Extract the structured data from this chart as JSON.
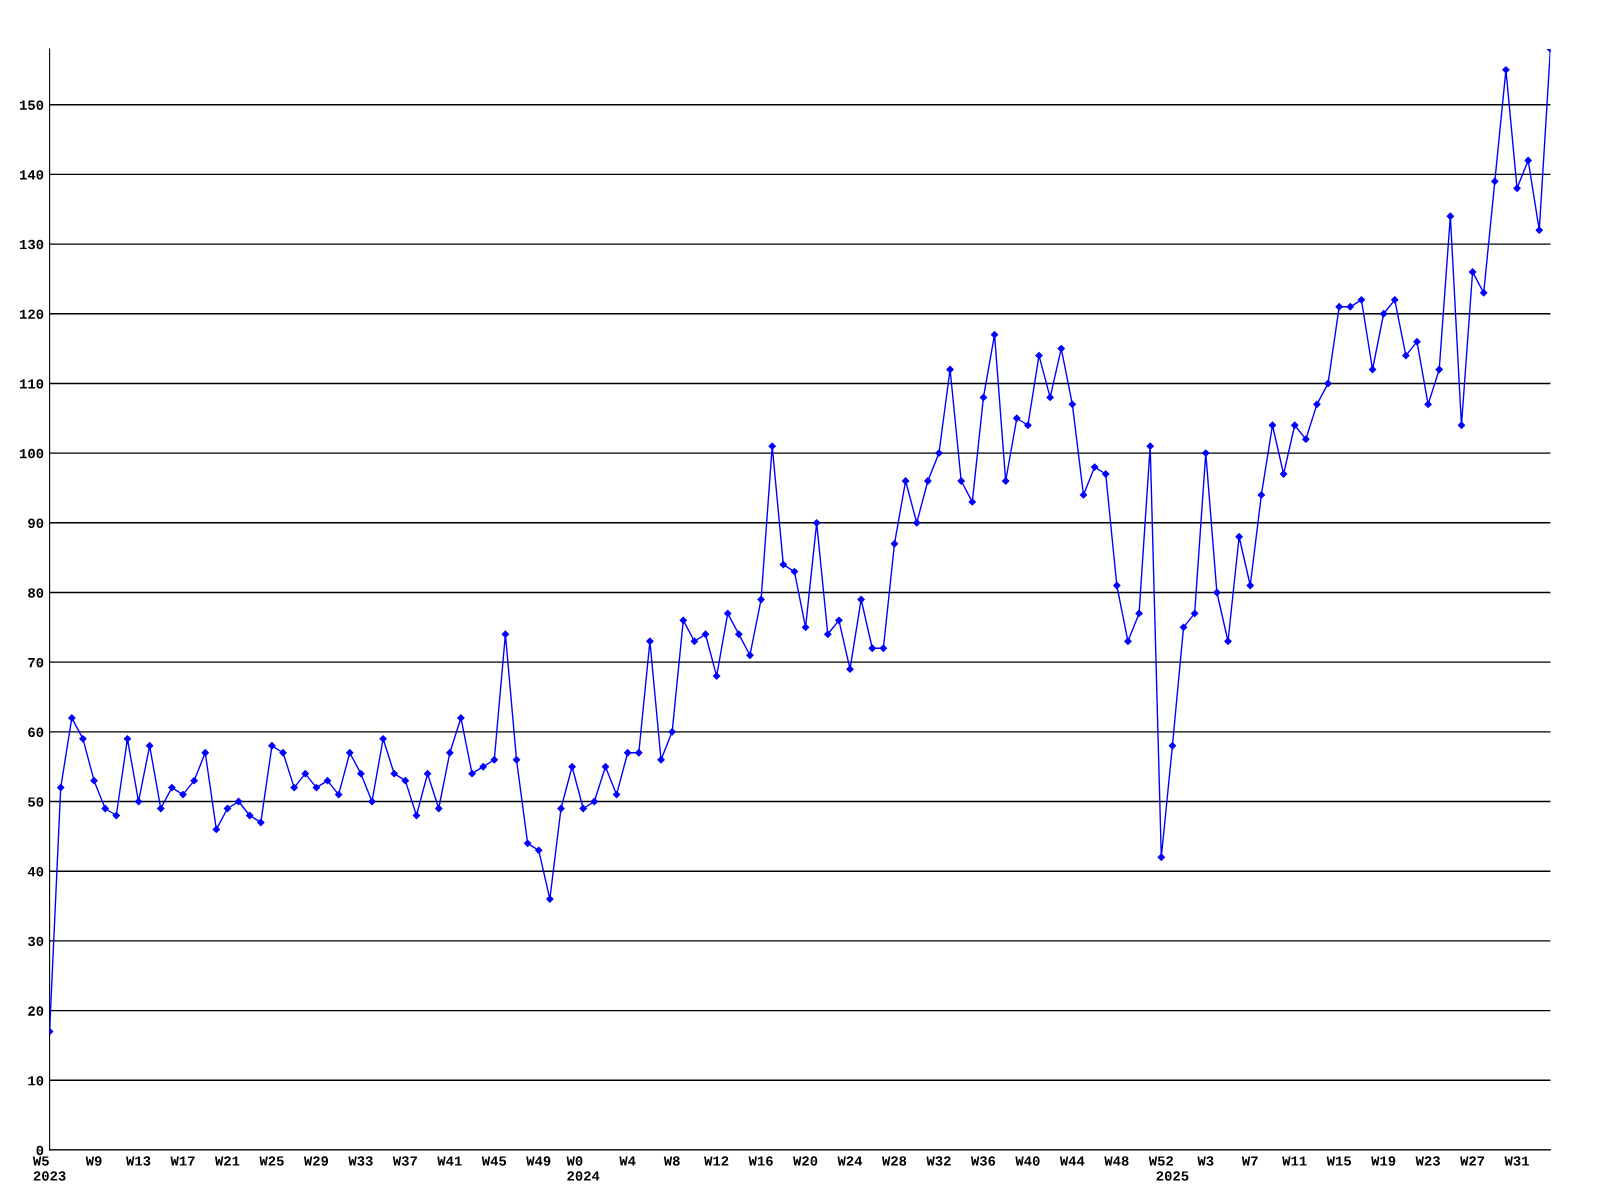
{
  "chart_data": {
    "type": "line",
    "categories": [
      "W5\n2023",
      null,
      null,
      null,
      "W9",
      null,
      null,
      null,
      "W13",
      null,
      null,
      null,
      "W17",
      null,
      null,
      null,
      "W21",
      null,
      null,
      null,
      "W25",
      null,
      null,
      null,
      "W29",
      null,
      null,
      null,
      "W33",
      null,
      null,
      null,
      "W37",
      null,
      null,
      null,
      "W41",
      null,
      null,
      null,
      "W45",
      null,
      null,
      null,
      "W49",
      null,
      null,
      null,
      "W0\n2024",
      null,
      null,
      null,
      "W4",
      null,
      null,
      null,
      "W8",
      null,
      null,
      null,
      "W12",
      null,
      null,
      null,
      "W16",
      null,
      null,
      null,
      "W20",
      null,
      null,
      null,
      "W24",
      null,
      null,
      null,
      "W28",
      null,
      null,
      null,
      "W32",
      null,
      null,
      null,
      "W36",
      null,
      null,
      null,
      "W40",
      null,
      null,
      null,
      "W44",
      null,
      null,
      null,
      "W48",
      null,
      null,
      null,
      "W52",
      "\n2025",
      null,
      null,
      "W3",
      null,
      null,
      null,
      "W7",
      null,
      null,
      null,
      "W11",
      null,
      null,
      null,
      "W15",
      null,
      null,
      null,
      "W19",
      null,
      null,
      null,
      "W23",
      null,
      null,
      null,
      "W27",
      null,
      null,
      null,
      "W31",
      null,
      null,
      null
    ],
    "series": [
      {
        "color": "#0000ff",
        "values": [
          17,
          52,
          62,
          59,
          53,
          49,
          48,
          59,
          50,
          58,
          49,
          52,
          51,
          53,
          57,
          46,
          49,
          50,
          48,
          47,
          58,
          57,
          52,
          54,
          52,
          53,
          51,
          57,
          54,
          50,
          59,
          54,
          53,
          48,
          54,
          49,
          57,
          62,
          54,
          55,
          56,
          74,
          56,
          44,
          43,
          36,
          49,
          55,
          49,
          50,
          55,
          51,
          57,
          57,
          73,
          56,
          60,
          76,
          73,
          74,
          68,
          77,
          74,
          71,
          79,
          101,
          84,
          83,
          75,
          90,
          74,
          76,
          69,
          79,
          72,
          72,
          87,
          96,
          90,
          96,
          100,
          112,
          96,
          93,
          108,
          117,
          96,
          105,
          104,
          114,
          108,
          115,
          107,
          94,
          98,
          97,
          81,
          73,
          77,
          101,
          42,
          58,
          75,
          77,
          100,
          80,
          73,
          88,
          81,
          94,
          104,
          97,
          104,
          102,
          107,
          110,
          121,
          121,
          122,
          112,
          120,
          122,
          114,
          116,
          107,
          112,
          134,
          104,
          126,
          123,
          139,
          155,
          138,
          142,
          132,
          158
        ]
      }
    ],
    "ylim": [
      0,
      158
    ],
    "yticks": [
      0,
      10,
      20,
      30,
      40,
      50,
      60,
      70,
      80,
      90,
      100,
      110,
      120,
      130,
      140,
      150
    ],
    "grid": "y",
    "marker": "diamond",
    "line_style": "solid"
  }
}
